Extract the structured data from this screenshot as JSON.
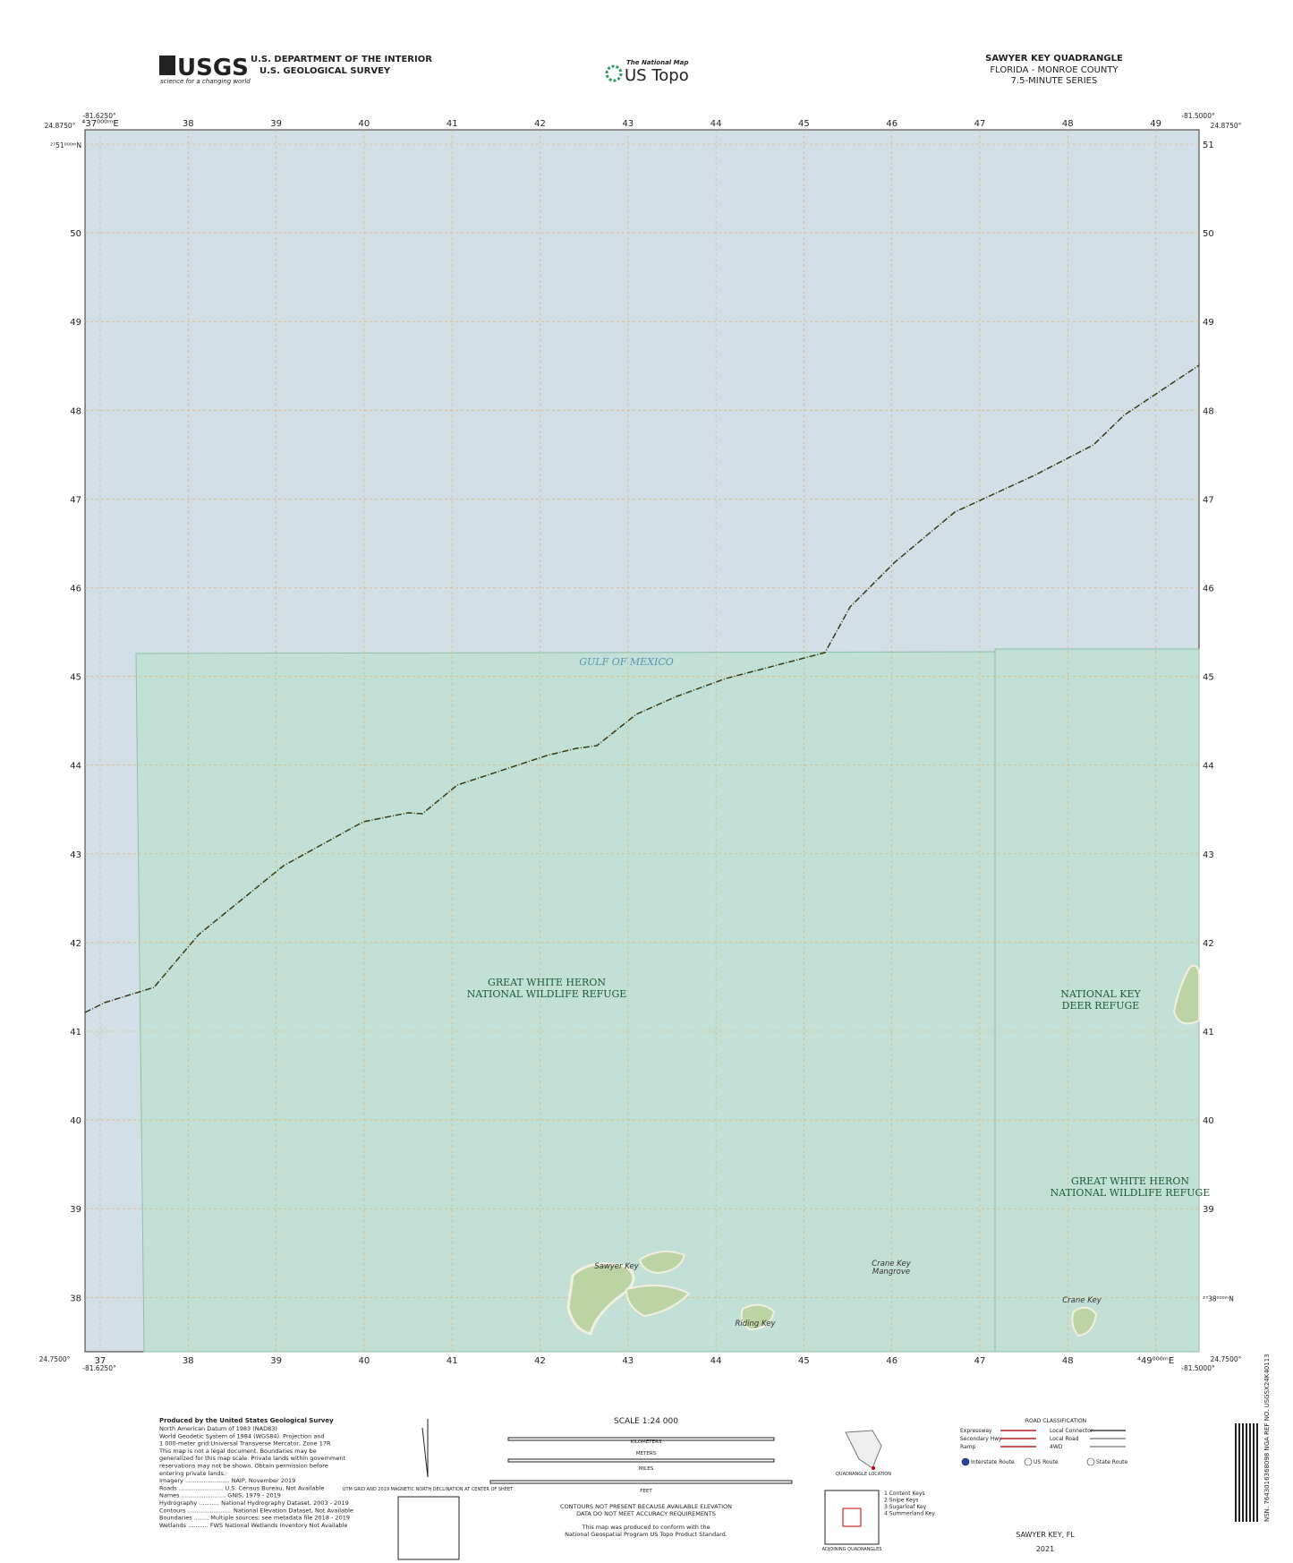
{
  "header": {
    "agency_logo": "USGS",
    "agency_tagline": "science for a changing world",
    "department": "U.S. DEPARTMENT OF THE INTERIOR",
    "survey": "U.S. GEOLOGICAL SURVEY",
    "product_line": "The National Map",
    "product": "US Topo",
    "quadrangle": "SAWYER KEY QUADRANGLE",
    "state_county": "FLORIDA - MONROE COUNTY",
    "series": "7.5-MINUTE SERIES"
  },
  "corners": {
    "nw_lat": "24.8750°",
    "nw_lon": "-81.6250°",
    "ne_lon": "-81.5000°",
    "ne_lat": "24.8750°",
    "sw_lat": "24.7500°",
    "sw_lon": "-81.6250°",
    "se_lon": "-81.5000°",
    "se_lat": "24.7500°"
  },
  "grid": {
    "easting_top": [
      "⁴37⁰⁰⁰ᵐE",
      "38",
      "39",
      "40",
      "41",
      "42",
      "43",
      "44",
      "45",
      "46",
      "47",
      "48",
      "49"
    ],
    "easting_bottom": [
      "37",
      "38",
      "39",
      "40",
      "41",
      "42",
      "43",
      "44",
      "45",
      "46",
      "47",
      "48",
      "⁴49⁰⁰⁰ᵐE"
    ],
    "northing_left": [
      "²⁷51⁰⁰⁰ᵐN",
      "50",
      "49",
      "48",
      "47",
      "46",
      "45",
      "44",
      "43",
      "42",
      "41",
      "40",
      "39",
      "38"
    ],
    "northing_right": [
      "51",
      "50",
      "49",
      "48",
      "47",
      "46",
      "45",
      "44",
      "43",
      "42",
      "41",
      "40",
      "39",
      "²⁷38⁰⁰⁰ᵐN"
    ]
  },
  "places": {
    "gulf": "GULF OF MEXICO",
    "refuge_1": [
      "GREAT WHITE HERON",
      "NATIONAL WILDLIFE REFUGE"
    ],
    "refuge_2": [
      "NATIONAL KEY",
      "DEER REFUGE"
    ],
    "refuge_3": [
      "GREAT WHITE HERON",
      "NATIONAL WILDLIFE REFUGE"
    ],
    "sawyer_key": "Sawyer Key",
    "crane_key_mangrove": [
      "Crane Key",
      "Mangrove"
    ],
    "crane_key": "Crane Key",
    "riding_key": "Riding Key"
  },
  "footer": {
    "produced_by": "Produced by the United States Geological Survey",
    "credits": [
      "North American Datum of 1983 (NAD83)",
      "World Geodetic System of 1984 (WGS84). Projection and",
      "1 000-meter grid:Universal Transverse Mercator, Zone 17R",
      "This map is not a legal document. Boundaries may be",
      "generalized for this map scale. Private lands within government",
      "reservations may not be shown. Obtain permission before",
      "entering private lands.",
      "Imagery ........................ NAIP, November 2019",
      "Roads ........................ U.S. Census Bureau, Not Available",
      "Names ........................ GNIS, 1979 - 2019",
      "Hydrography ........... National Hydrography Dataset, 2003 - 2019",
      "Contours ........................ National Elevation Dataset, Not Available",
      "Boundaries ........ Multiple sources; see metadata file 2018 - 2019",
      "Wetlands ........... FWS National Wetlands Inventory Not Available"
    ],
    "declination": "UTM GRID AND 2019 MAGNETIC NORTH DECLINATION AT CENTER OF SHEET",
    "scale": "SCALE 1:24 000",
    "km": "KILOMETERS",
    "meters": "METERS",
    "miles": "MILES",
    "feet": "FEET",
    "contours": [
      "CONTOURS NOT PRESENT BECAUSE AVAILABLE ELEVATION",
      "DATA DO NOT MEET ACCURACY REQUIREMENTS"
    ],
    "standard": [
      "This map was produced to conform with the",
      "National Geospatial Program US Topo Product Standard."
    ],
    "quad_location": "QUADRANGLE LOCATION",
    "adjoining_title": "ADJOINING QUADRANGLES",
    "adjoining": [
      "1 Content Keys",
      "2 Snipe Keys",
      "3 Sugarloaf Key",
      "4 Summerland Key"
    ],
    "road_title": "ROAD CLASSIFICATION",
    "roads": [
      "Expressway",
      "Local Connector",
      "Secondary Hwy",
      "Local Road",
      "Ramp",
      "4WD",
      "Interstate Route",
      "US Route",
      "State Route"
    ],
    "title": "SAWYER KEY, FL",
    "year": "2021",
    "product_id": "NSN. 7643016368098 NGA REF NO. USGSX24K40113"
  }
}
